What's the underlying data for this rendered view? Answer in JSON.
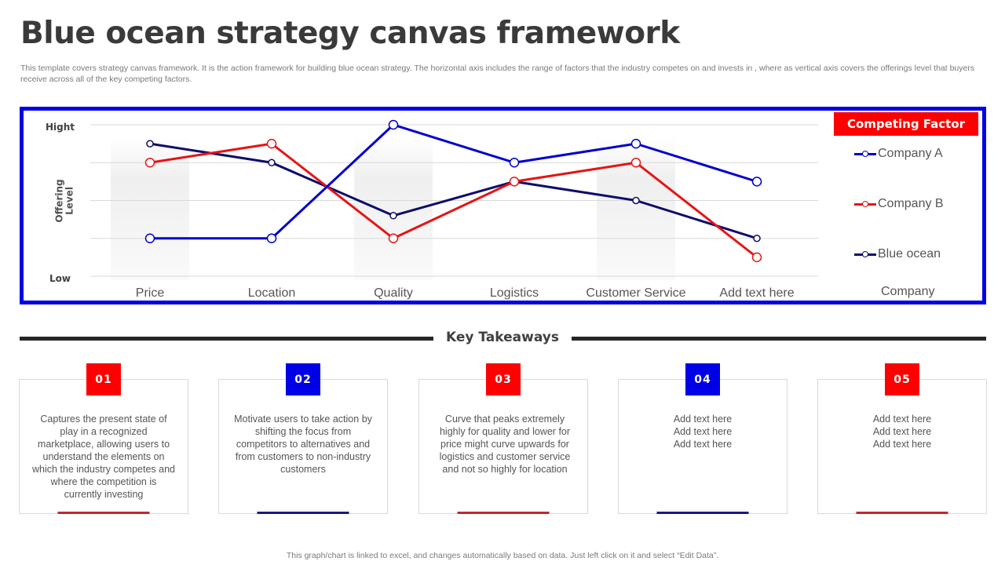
{
  "header": {
    "title": "Blue ocean strategy canvas framework",
    "subtitle": "This template covers strategy canvas framework. It is the action framework for building blue ocean strategy. The horizontal axis includes the range of factors that the industry competes on and invests in , where as vertical axis covers the offerings level that buyers receive across all of the key competing factors."
  },
  "colors": {
    "frame": "#0000e6",
    "company_a": "#0000cc",
    "company_b": "#e61414",
    "blue_ocean": "#0d0d6b",
    "accent_red": "#ff0000",
    "accent_blue": "#0000e6"
  },
  "chart_data": {
    "type": "line",
    "title": "",
    "xlabel": "",
    "ylabel": "Offering Level",
    "y_tick_labels": {
      "high": "Hight",
      "low": "Low"
    },
    "ylim": [
      0,
      4
    ],
    "grid": true,
    "legend_position": "right",
    "legend_title": "Competing Factor",
    "legend_footer": "Company",
    "categories": [
      "Price",
      "Location",
      "Quality",
      "Logistics",
      "Customer Service",
      "Add text here"
    ],
    "series": [
      {
        "name": "Company A",
        "color": "#0000cc",
        "values": [
          1,
          1,
          4,
          3,
          3.5,
          2.5
        ]
      },
      {
        "name": "Company B",
        "color": "#e61414",
        "values": [
          3,
          3.5,
          1,
          2.5,
          3,
          0.5
        ]
      },
      {
        "name": "Blue ocean",
        "color": "#0d0d6b",
        "values": [
          3.5,
          3,
          1.6,
          2.5,
          2,
          1
        ]
      }
    ]
  },
  "chart": {
    "y_axis_title": "Offering\nLevel",
    "high_label": "Hight",
    "low_label": "Low"
  },
  "takeaways": {
    "title": "Key Takeaways",
    "cards": [
      {
        "number": "01",
        "color": "#ff0000",
        "bar_color": "#c0282d",
        "text": "Captures the present state of play in a recognized marketplace, allowing users to understand the elements on which the industry competes and where the competition is currently investing"
      },
      {
        "number": "02",
        "color": "#0000e6",
        "bar_color": "#1a1a80",
        "text": "Motivate users to take action by shifting the focus from competitors to alternatives and from customers to non-industry customers"
      },
      {
        "number": "03",
        "color": "#ff0000",
        "bar_color": "#c0282d",
        "text": "Curve that peaks extremely highly for quality and lower for price might curve upwards for logistics and customer service and not so highly for location"
      },
      {
        "number": "04",
        "color": "#0000e6",
        "bar_color": "#1a1a80",
        "text": "Add text here\nAdd text here\nAdd text here"
      },
      {
        "number": "05",
        "color": "#ff0000",
        "bar_color": "#c0282d",
        "text": "Add text here\nAdd text here\nAdd text here"
      }
    ]
  },
  "footer": {
    "note": "This graph/chart is linked to excel, and changes automatically based on data. Just left click on it and select “Edit Data”."
  }
}
